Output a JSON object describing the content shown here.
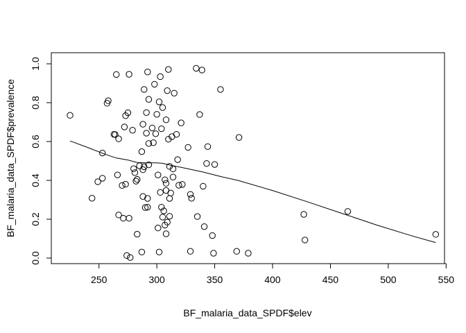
{
  "chart_data": {
    "type": "scatter",
    "xlabel": "BF_malaria_data_SPDF$elev",
    "ylabel": "BF_malaria_data_SPDF$prevalence",
    "xlim": [
      215,
      550
    ],
    "ylim": [
      0,
      1
    ],
    "x_ticks": [
      250,
      300,
      350,
      400,
      450,
      500,
      550
    ],
    "y_ticks": [
      0.0,
      0.2,
      0.4,
      0.6,
      0.8,
      1.0
    ],
    "y_tick_labels": [
      "0.0",
      "0.2",
      "0.4",
      "0.6",
      "0.8",
      "1.0"
    ],
    "grid": false,
    "points": [
      [
        225,
        0.735
      ],
      [
        244,
        0.308
      ],
      [
        249,
        0.393
      ],
      [
        253,
        0.411
      ],
      [
        253,
        0.541
      ],
      [
        257,
        0.797
      ],
      [
        258,
        0.81
      ],
      [
        263,
        0.637
      ],
      [
        264,
        0.636
      ],
      [
        265,
        0.945
      ],
      [
        266,
        0.428
      ],
      [
        267,
        0.614
      ],
      [
        267,
        0.222
      ],
      [
        270,
        0.374
      ],
      [
        271,
        0.205
      ],
      [
        272,
        0.675
      ],
      [
        273,
        0.733
      ],
      [
        273,
        0.38
      ],
      [
        274,
        0.013
      ],
      [
        275,
        0.748
      ],
      [
        276,
        0.946
      ],
      [
        276,
        0.205
      ],
      [
        277,
        0.003
      ],
      [
        279,
        0.658
      ],
      [
        280,
        0.46
      ],
      [
        281,
        0.44
      ],
      [
        282,
        0.396
      ],
      [
        283,
        0.405
      ],
      [
        283,
        0.123
      ],
      [
        285,
        0.475
      ],
      [
        287,
        0.548
      ],
      [
        287,
        0.031
      ],
      [
        288,
        0.689
      ],
      [
        288,
        0.455
      ],
      [
        288,
        0.317
      ],
      [
        289,
        0.868
      ],
      [
        289,
        0.47
      ],
      [
        290,
        0.26
      ],
      [
        291,
        0.643
      ],
      [
        291,
        0.749
      ],
      [
        292,
        0.958
      ],
      [
        292,
        0.307
      ],
      [
        292,
        0.262
      ],
      [
        293,
        0.817
      ],
      [
        293,
        0.59
      ],
      [
        293,
        0.48
      ],
      [
        296,
        0.67
      ],
      [
        297,
        0.594
      ],
      [
        298,
        0.895
      ],
      [
        299,
        0.64
      ],
      [
        300,
        0.74
      ],
      [
        301,
        0.428
      ],
      [
        301,
        0.155
      ],
      [
        302,
        0.804
      ],
      [
        302,
        0.031
      ],
      [
        303,
        0.934
      ],
      [
        303,
        0.338
      ],
      [
        304,
        0.666
      ],
      [
        304,
        0.262
      ],
      [
        305,
        0.775
      ],
      [
        305,
        0.211
      ],
      [
        306,
        0.243
      ],
      [
        307,
        0.403
      ],
      [
        307,
        0.17
      ],
      [
        308,
        0.712
      ],
      [
        308,
        0.385
      ],
      [
        308,
        0.348
      ],
      [
        308,
        0.125
      ],
      [
        309,
        0.862
      ],
      [
        309,
        0.185
      ],
      [
        310,
        0.971
      ],
      [
        310,
        0.612
      ],
      [
        311,
        0.472
      ],
      [
        311,
        0.307
      ],
      [
        311,
        0.215
      ],
      [
        312,
        0.335
      ],
      [
        313,
        0.625
      ],
      [
        314,
        0.459
      ],
      [
        314,
        0.417
      ],
      [
        315,
        0.849
      ],
      [
        317,
        0.637
      ],
      [
        318,
        0.507
      ],
      [
        319,
        0.375
      ],
      [
        321,
        0.696
      ],
      [
        322,
        0.379
      ],
      [
        327,
        0.57
      ],
      [
        329,
        0.328
      ],
      [
        329,
        0.035
      ],
      [
        330,
        0.308
      ],
      [
        334,
        0.977
      ],
      [
        335,
        0.214
      ],
      [
        337,
        0.739
      ],
      [
        339,
        0.968
      ],
      [
        340,
        0.37
      ],
      [
        341,
        0.162
      ],
      [
        343,
        0.487
      ],
      [
        344,
        0.574
      ],
      [
        348,
        0.116
      ],
      [
        349,
        0.025
      ],
      [
        350,
        0.482
      ],
      [
        355,
        0.868
      ],
      [
        369,
        0.035
      ],
      [
        371,
        0.621
      ],
      [
        379,
        0.025
      ],
      [
        427,
        0.225
      ],
      [
        428,
        0.093
      ],
      [
        465,
        0.24
      ],
      [
        541,
        0.122
      ]
    ],
    "smooth_line": [
      [
        225,
        0.603
      ],
      [
        240,
        0.57
      ],
      [
        255,
        0.535
      ],
      [
        265,
        0.515
      ],
      [
        275,
        0.505
      ],
      [
        283,
        0.492
      ],
      [
        290,
        0.49
      ],
      [
        300,
        0.49
      ],
      [
        305,
        0.488
      ],
      [
        312,
        0.478
      ],
      [
        325,
        0.462
      ],
      [
        340,
        0.443
      ],
      [
        355,
        0.42
      ],
      [
        370,
        0.4
      ],
      [
        400,
        0.348
      ],
      [
        430,
        0.29
      ],
      [
        460,
        0.23
      ],
      [
        490,
        0.17
      ],
      [
        520,
        0.115
      ],
      [
        541,
        0.08
      ]
    ]
  }
}
